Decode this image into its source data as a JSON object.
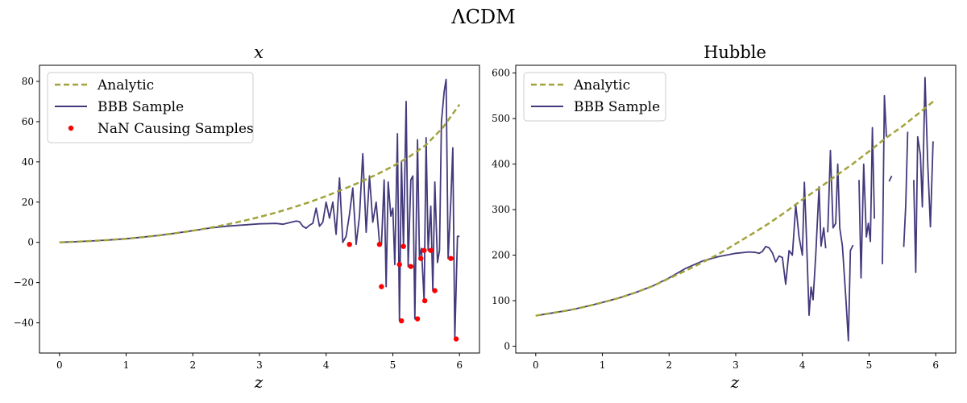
{
  "figure": {
    "suptitle": "ΛCDM"
  },
  "colors": {
    "analytic": "#a2a33c",
    "sample": "#433a7c",
    "nan": "#ff0000"
  },
  "chart_data": [
    {
      "type": "line",
      "title": "x",
      "xlabel": "z",
      "ylabel": "",
      "xlim": [
        -0.3,
        6.3
      ],
      "ylim": [
        -55,
        88
      ],
      "xticks": [
        0,
        1,
        2,
        3,
        4,
        5,
        6
      ],
      "yticks": [
        -40,
        -20,
        0,
        20,
        40,
        60,
        80
      ],
      "legend": {
        "position": "top-left",
        "entries": [
          "Analytic",
          "BBB Sample",
          "NaN Causing Samples"
        ]
      },
      "analytic": {
        "name": "Analytic",
        "x": [
          0,
          0.25,
          0.5,
          0.75,
          1,
          1.25,
          1.5,
          1.75,
          2,
          2.25,
          2.5,
          2.75,
          3,
          3.25,
          3.5,
          3.75,
          4,
          4.25,
          4.5,
          4.75,
          5,
          5.25,
          5.5,
          5.75,
          6
        ],
        "y": [
          0,
          0.3,
          0.7,
          1.2,
          1.8,
          2.6,
          3.5,
          4.6,
          5.8,
          7.2,
          8.8,
          10.6,
          12.6,
          14.8,
          17.3,
          20,
          23,
          26.3,
          29.8,
          33.6,
          37.8,
          42.6,
          48.5,
          57,
          68.5
        ]
      },
      "sample": {
        "name": "BBB Sample",
        "x": [
          0,
          0.25,
          0.5,
          0.75,
          1,
          1.25,
          1.5,
          1.75,
          2,
          2.25,
          2.5,
          2.75,
          3,
          3.25,
          3.35,
          3.45,
          3.55,
          3.6,
          3.65,
          3.7,
          3.75,
          3.8,
          3.85,
          3.9,
          3.95,
          4,
          4.05,
          4.1,
          4.15,
          4.2,
          4.25,
          4.3,
          4.35,
          4.4,
          4.45,
          4.5,
          4.55,
          4.6,
          4.65,
          4.7,
          4.75,
          4.8,
          4.83,
          4.87,
          4.9,
          4.93,
          4.97,
          5,
          5.03,
          5.07,
          5.1,
          5.13,
          5.16,
          5.2,
          5.23,
          5.27,
          5.3,
          5.33,
          5.37,
          5.4,
          5.43,
          5.47,
          5.5,
          5.53,
          5.57,
          5.6,
          5.63,
          5.67,
          5.7,
          5.73,
          5.77,
          5.8,
          5.83,
          5.87,
          5.9,
          5.93,
          5.97,
          6
        ],
        "y": [
          0,
          0.3,
          0.7,
          1.2,
          1.8,
          2.6,
          3.5,
          4.6,
          5.8,
          7.1,
          8,
          8.6,
          9.2,
          9.4,
          9,
          9.8,
          10.6,
          10.3,
          8,
          7,
          8.5,
          9.5,
          17,
          8,
          10,
          20,
          12,
          20,
          4,
          32,
          0,
          3,
          14,
          27,
          -1,
          13,
          44,
          5,
          33,
          10,
          20,
          0,
          -1,
          31,
          -22,
          30,
          13,
          17,
          -11,
          54,
          -39,
          40,
          -2,
          70,
          -12,
          31,
          33,
          -38,
          51,
          -7,
          -3,
          -29,
          52,
          -4,
          18,
          -24,
          30,
          -10,
          -4,
          60,
          75,
          81,
          -8,
          20,
          47,
          -48,
          3,
          3
        ]
      },
      "nan_points": {
        "name": "NaN Causing Samples",
        "x": [
          4.35,
          4.8,
          4.83,
          5.1,
          5.13,
          5.16,
          5.27,
          5.37,
          5.42,
          5.47,
          5.48,
          5.57,
          5.63,
          5.87,
          5.95
        ],
        "y": [
          -1,
          -1,
          -22,
          -11,
          -39,
          -2,
          -12,
          -38,
          -8,
          -4,
          -29,
          -4,
          -24,
          -8,
          -48
        ]
      }
    },
    {
      "type": "line",
      "title": "Hubble",
      "xlabel": "z",
      "ylabel": "",
      "xlim": [
        -0.3,
        6.3
      ],
      "ylim": [
        -15,
        617
      ],
      "xticks": [
        0,
        1,
        2,
        3,
        4,
        5,
        6
      ],
      "yticks": [
        0,
        100,
        200,
        300,
        400,
        500,
        600
      ],
      "legend": {
        "position": "top-left",
        "entries": [
          "Analytic",
          "BBB Sample"
        ]
      },
      "analytic": {
        "name": "Analytic",
        "x": [
          0,
          0.25,
          0.5,
          0.75,
          1,
          1.25,
          1.5,
          1.75,
          2,
          2.25,
          2.5,
          2.75,
          3,
          3.25,
          3.5,
          3.75,
          4,
          4.25,
          4.5,
          4.75,
          5,
          5.25,
          5.5,
          5.75,
          6
        ],
        "y": [
          67,
          73,
          79,
          87,
          96,
          106,
          118,
          132,
          149,
          166,
          184,
          203,
          225,
          247,
          270,
          295,
          322,
          347,
          374,
          400,
          428,
          457,
          483,
          512,
          542
        ]
      },
      "sample": {
        "name": "BBB Sample",
        "segments": [
          {
            "x": [
              0,
              0.25,
              0.5,
              0.75,
              1,
              1.25,
              1.5,
              1.75,
              2,
              2.25,
              2.5,
              2.75,
              3,
              3.2,
              3.3,
              3.35,
              3.4,
              3.45,
              3.5,
              3.55,
              3.6,
              3.65,
              3.7,
              3.75,
              3.8,
              3.85,
              3.9,
              3.95,
              4,
              4.03,
              4.06,
              4.1,
              4.13,
              4.16,
              4.2,
              4.25,
              4.28,
              4.32,
              4.35
            ],
            "y": [
              67,
              73,
              79,
              87,
              96,
              106,
              118,
              132,
              150,
              171,
              187,
              197,
              204,
              207,
              206,
              204,
              208,
              219,
              216,
              205,
              185,
              198,
              195,
              136,
              210,
              200,
              310,
              240,
              200,
              360,
              243,
              68,
              130,
              102,
              200,
              350,
              220,
              260,
              215
            ]
          },
          {
            "x": [
              4.38,
              4.42,
              4.46,
              4.5,
              4.53,
              4.56,
              4.6,
              4.65,
              4.69,
              4.72,
              4.76
            ],
            "y": [
              250,
              430,
              260,
              270,
              400,
              260,
              220,
              110,
              12,
              210,
              222
            ]
          },
          {
            "x": [
              4.85,
              4.88,
              4.92,
              4.96,
              4.99,
              5.02,
              5.05,
              5.08
            ],
            "y": [
              365,
              150,
              400,
              240,
              270,
              230,
              480,
              280
            ]
          },
          {
            "x": [
              5.2,
              5.23,
              5.26
            ],
            "y": [
              180,
              550,
              460
            ]
          },
          {
            "x": [
              5.3,
              5.34
            ],
            "y": [
              362,
              374
            ]
          },
          {
            "x": [
              5.52,
              5.55,
              5.58
            ],
            "y": [
              218,
              310,
              471
            ]
          },
          {
            "x": [
              5.67,
              5.7,
              5.73,
              5.77,
              5.8,
              5.84,
              5.88,
              5.92,
              5.96
            ],
            "y": [
              365,
              162,
              460,
              420,
              306,
              590,
              400,
              262,
              450
            ]
          }
        ]
      }
    }
  ]
}
